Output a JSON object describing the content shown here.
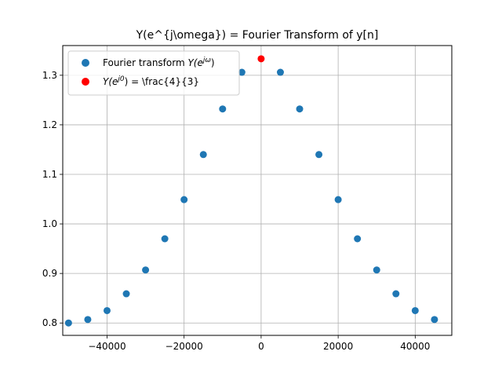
{
  "chart_data": {
    "type": "scatter",
    "title": "Y(e^{j\\omega}) = Fourier Transform of y[n]",
    "xlabel": "",
    "ylabel": "",
    "xlim": [
      -51500,
      49500
    ],
    "ylim": [
      0.775,
      1.36
    ],
    "grid": true,
    "legend_position": "top-left",
    "x_ticks": [
      -40000,
      -20000,
      0,
      20000,
      40000
    ],
    "x_tick_labels": [
      "−40000",
      "−20000",
      "0",
      "20000",
      "40000"
    ],
    "y_ticks": [
      0.8,
      0.9,
      1.0,
      1.1,
      1.2,
      1.3
    ],
    "y_tick_labels": [
      "0.8",
      "0.9",
      "1.0",
      "1.1",
      "1.2",
      "1.3"
    ],
    "series": [
      {
        "name": "Fourier transform Y(e^{jω})",
        "legend_main": "Fourier transform ",
        "legend_math_base": "Y(e",
        "legend_math_sup": "jω",
        "legend_math_tail": ")",
        "color": "#1f77b4",
        "x": [
          -50000,
          -45000,
          -40000,
          -35000,
          -30000,
          -25000,
          -20000,
          -15000,
          -10000,
          -5000,
          5000,
          10000,
          15000,
          20000,
          25000,
          30000,
          35000,
          40000,
          45000
        ],
        "y": [
          0.8,
          0.807,
          0.825,
          0.859,
          0.907,
          0.97,
          1.049,
          1.14,
          1.232,
          1.306,
          1.306,
          1.232,
          1.14,
          1.049,
          0.97,
          0.907,
          0.859,
          0.825,
          0.807
        ]
      },
      {
        "name": "Y(e^{j0}) = \\frac{4}{3}",
        "legend_math_base": "Y(e",
        "legend_math_sup": "j0",
        "legend_math_tail": ")",
        "legend_rest": " = \\frac{4}{3}",
        "color": "#ff0000",
        "x": [
          0
        ],
        "y": [
          1.3333
        ]
      }
    ]
  }
}
